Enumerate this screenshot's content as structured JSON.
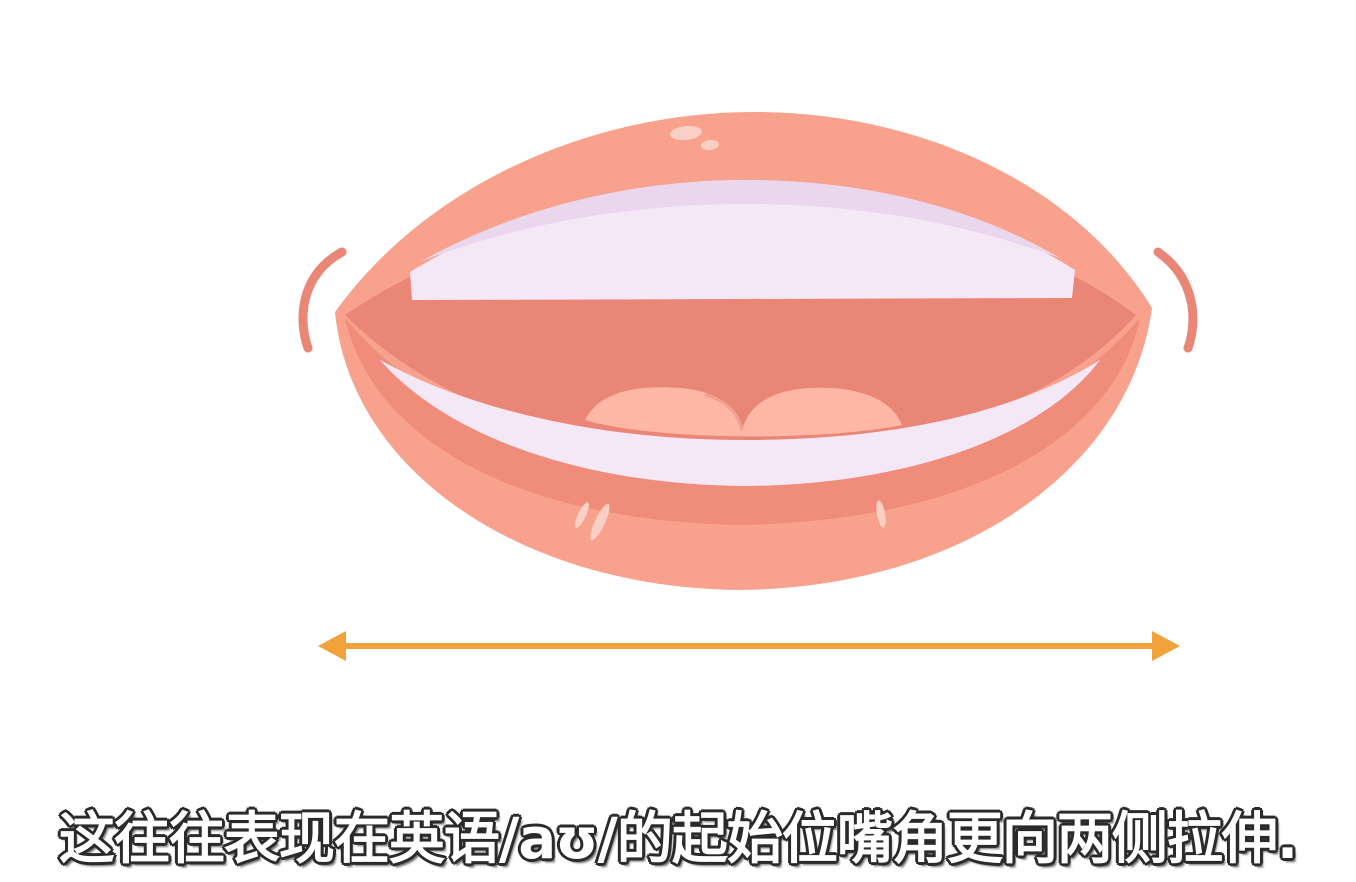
{
  "subtitle": {
    "text": "这往往表现在英语/aʊ/的起始位嘴角更向两侧拉伸."
  },
  "illustration": {
    "subject": "open-mouth-lips",
    "colors": {
      "lip": "#f8a18c",
      "lip_shadow": "#ef8c7a",
      "mouth_interior": "#ea8676",
      "teeth": "#f5e8f6",
      "teeth_shade": "#ead7ee",
      "tongue": "#fdb7a4",
      "tongue_outline": "#f4a08f",
      "corner_mark": "#ea8676",
      "arrow": "#f1a23b"
    }
  }
}
